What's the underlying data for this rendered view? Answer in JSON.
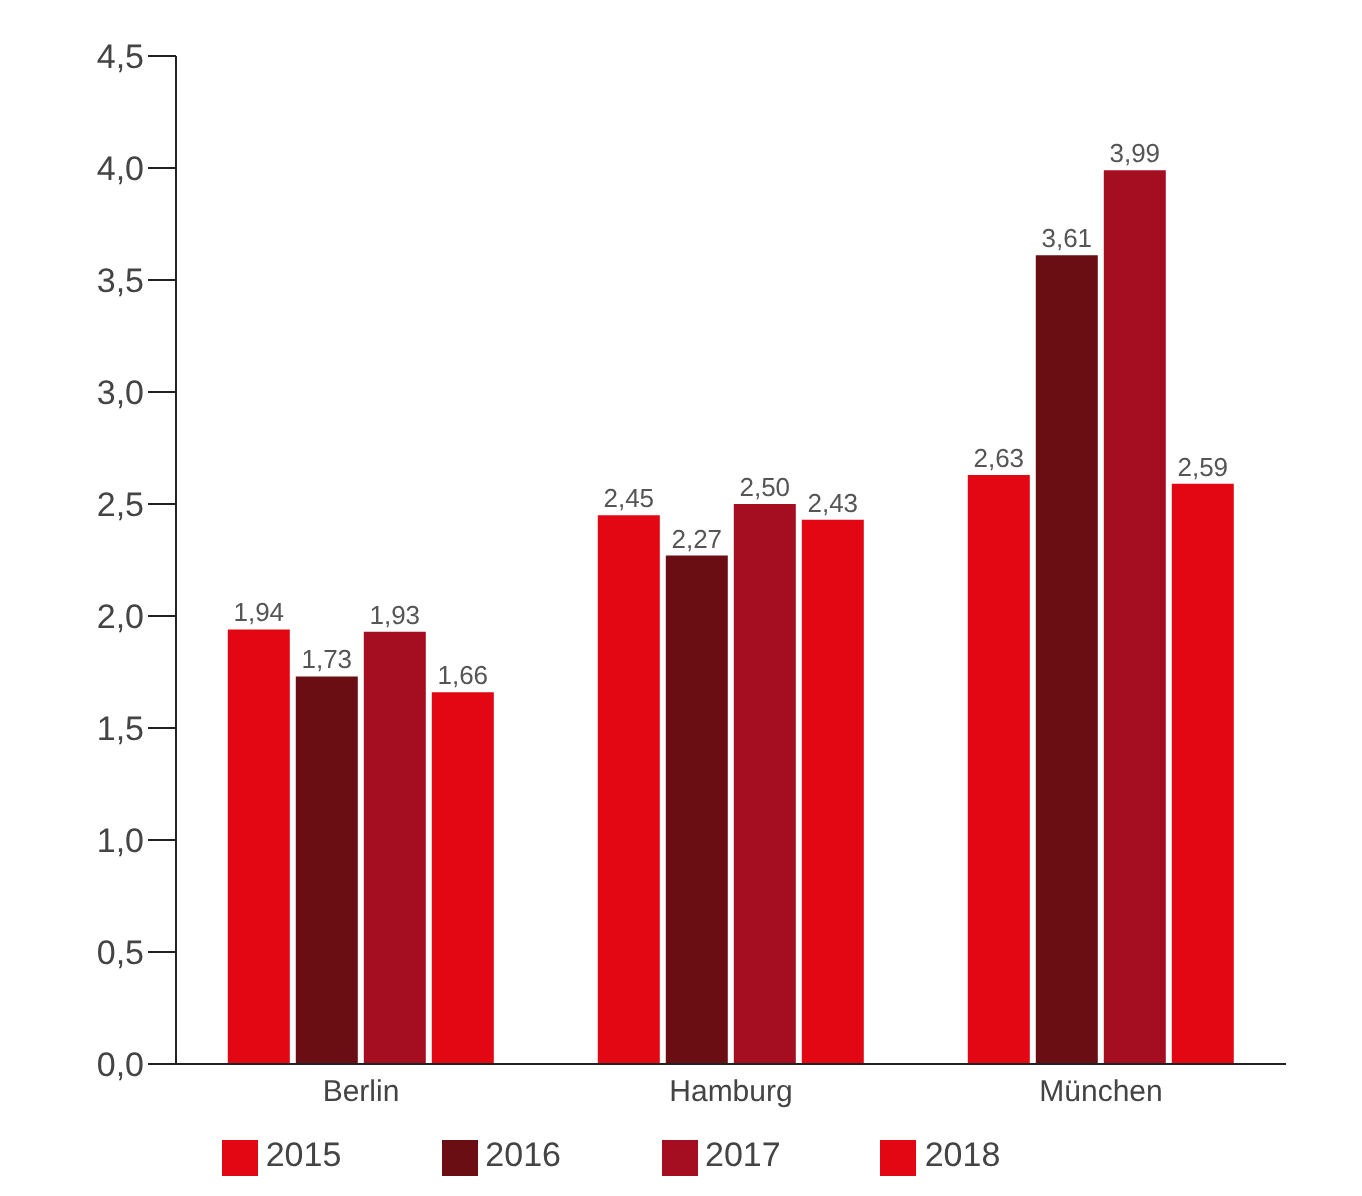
{
  "chart_data": {
    "type": "bar",
    "categories": [
      "Berlin",
      "Hamburg",
      "München"
    ],
    "series": [
      {
        "name": "2015",
        "color": "#e30613",
        "values": [
          1.94,
          2.45,
          2.63
        ],
        "value_labels": [
          "1,94",
          "2,45",
          "2,63"
        ]
      },
      {
        "name": "2016",
        "color": "#6b0e13",
        "values": [
          1.73,
          2.27,
          3.61
        ],
        "value_labels": [
          "1,73",
          "2,27",
          "3,61"
        ]
      },
      {
        "name": "2017",
        "color": "#a50d20",
        "values": [
          1.93,
          2.5,
          3.99
        ],
        "value_labels": [
          "1,93",
          "2,50",
          "3,99"
        ]
      },
      {
        "name": "2018",
        "color": "#e30613",
        "values": [
          1.66,
          2.43,
          2.59
        ],
        "value_labels": [
          "1,66",
          "2,43",
          "2,59"
        ]
      }
    ],
    "ylim": [
      0,
      4.5
    ],
    "yticks": [
      {
        "value": 0,
        "label": "0,0"
      },
      {
        "value": 0.5,
        "label": "0,5"
      },
      {
        "value": 1,
        "label": "1,0"
      },
      {
        "value": 1.5,
        "label": "1,5"
      },
      {
        "value": 2,
        "label": "2,0"
      },
      {
        "value": 2.5,
        "label": "2,5"
      },
      {
        "value": 3,
        "label": "3,0"
      },
      {
        "value": 3.5,
        "label": "3,5"
      },
      {
        "value": 4,
        "label": "4,0"
      },
      {
        "value": 4.5,
        "label": "4,5"
      }
    ],
    "grid": false,
    "legend": "bottom"
  }
}
